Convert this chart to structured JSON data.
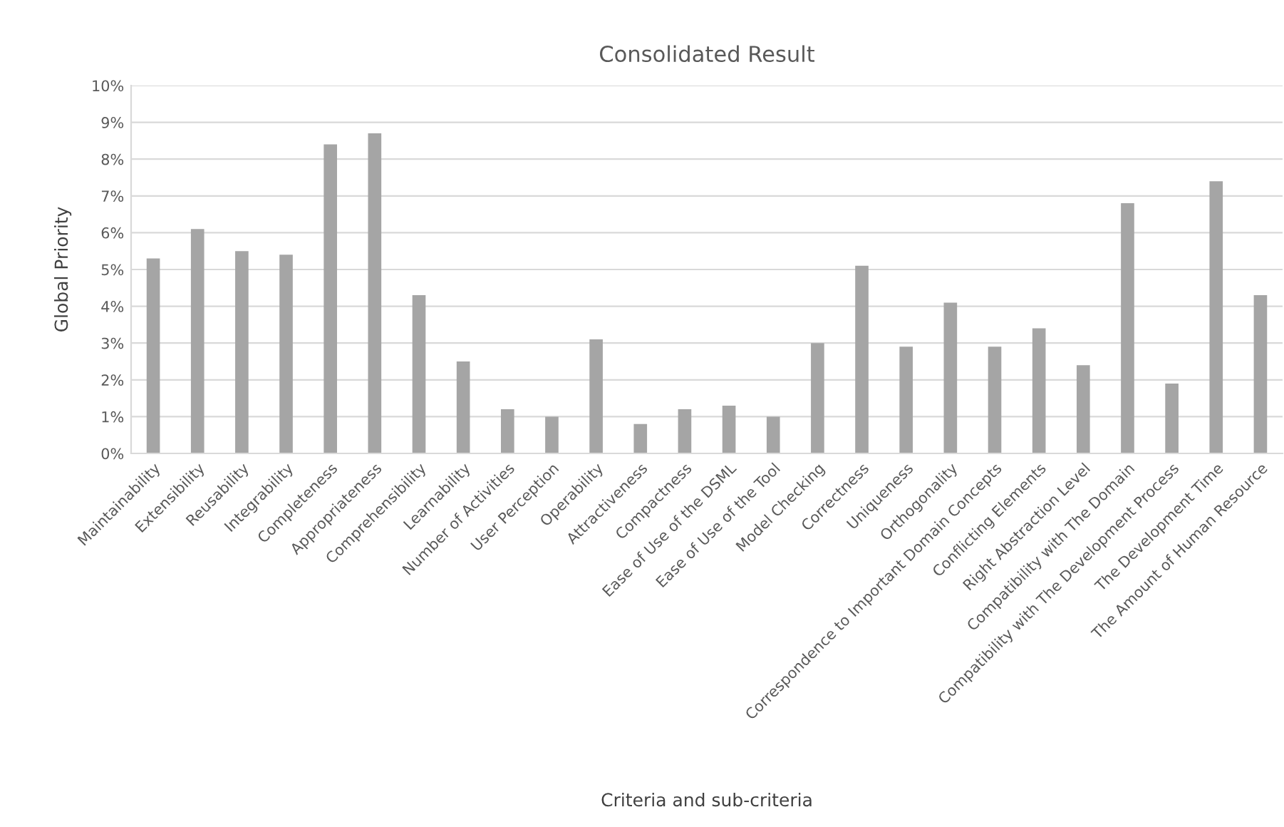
{
  "chart_data": {
    "type": "bar",
    "title": "Consolidated Result",
    "xlabel": "Criteria and sub-criteria",
    "ylabel": "Global Priority",
    "categories": [
      "Maintainability",
      "Extensibility",
      "Reusability",
      "Integrability",
      "Completeness",
      "Appropriateness",
      "Comprehensibility",
      "Learnability",
      "Number of Activities",
      "User Perception",
      "Operability",
      "Attractiveness",
      "Compactness",
      "Ease of Use of the DSML",
      "Ease of Use of the Tool",
      "Model Checking",
      "Correctness",
      "Uniqueness",
      "Orthogonality",
      "Correspondence to Important Domain Concepts",
      "Conflicting Elements",
      "Right Abstraction Level",
      "Compatibility with The Domain",
      "Compatibility with The Development Process",
      "The Development Time",
      "The Amount of Human Resource"
    ],
    "values": [
      5.3,
      6.1,
      5.5,
      5.4,
      8.4,
      8.7,
      4.3,
      2.5,
      1.2,
      1.0,
      3.1,
      0.8,
      1.2,
      1.3,
      1.0,
      3.0,
      5.1,
      2.9,
      4.1,
      2.9,
      3.4,
      2.4,
      6.8,
      1.9,
      7.4,
      4.3
    ],
    "color": "#a5a5a5",
    "ylim": [
      0,
      10
    ],
    "yticks": [
      {
        "value": 0,
        "label": "0%"
      },
      {
        "value": 1,
        "label": "1%"
      },
      {
        "value": 2,
        "label": "2%"
      },
      {
        "value": 3,
        "label": "3%"
      },
      {
        "value": 4,
        "label": "4%"
      },
      {
        "value": 5,
        "label": "5%"
      },
      {
        "value": 6,
        "label": "6%"
      },
      {
        "value": 7,
        "label": "7%"
      },
      {
        "value": 8,
        "label": "8%"
      },
      {
        "value": 9,
        "label": "9%"
      },
      {
        "value": 10,
        "label": "10%"
      }
    ],
    "grid": "y"
  }
}
